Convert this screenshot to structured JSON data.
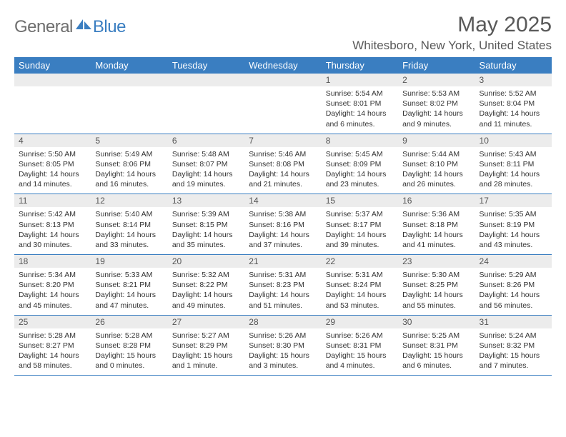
{
  "logo": {
    "text1": "General",
    "text2": "Blue"
  },
  "title": "May 2025",
  "location": "Whitesboro, New York, United States",
  "colors": {
    "header_bg": "#3a7ec1",
    "header_text": "#ffffff",
    "daynum_bg": "#ececec",
    "row_border": "#3a7ec1",
    "title_color": "#595959",
    "logo_gray": "#6e6e6e",
    "logo_blue": "#3a7ec1"
  },
  "dayNames": [
    "Sunday",
    "Monday",
    "Tuesday",
    "Wednesday",
    "Thursday",
    "Friday",
    "Saturday"
  ],
  "weeks": [
    [
      {
        "n": "",
        "sr": "",
        "ss": "",
        "dl": ""
      },
      {
        "n": "",
        "sr": "",
        "ss": "",
        "dl": ""
      },
      {
        "n": "",
        "sr": "",
        "ss": "",
        "dl": ""
      },
      {
        "n": "",
        "sr": "",
        "ss": "",
        "dl": ""
      },
      {
        "n": "1",
        "sr": "Sunrise: 5:54 AM",
        "ss": "Sunset: 8:01 PM",
        "dl": "Daylight: 14 hours and 6 minutes."
      },
      {
        "n": "2",
        "sr": "Sunrise: 5:53 AM",
        "ss": "Sunset: 8:02 PM",
        "dl": "Daylight: 14 hours and 9 minutes."
      },
      {
        "n": "3",
        "sr": "Sunrise: 5:52 AM",
        "ss": "Sunset: 8:04 PM",
        "dl": "Daylight: 14 hours and 11 minutes."
      }
    ],
    [
      {
        "n": "4",
        "sr": "Sunrise: 5:50 AM",
        "ss": "Sunset: 8:05 PM",
        "dl": "Daylight: 14 hours and 14 minutes."
      },
      {
        "n": "5",
        "sr": "Sunrise: 5:49 AM",
        "ss": "Sunset: 8:06 PM",
        "dl": "Daylight: 14 hours and 16 minutes."
      },
      {
        "n": "6",
        "sr": "Sunrise: 5:48 AM",
        "ss": "Sunset: 8:07 PM",
        "dl": "Daylight: 14 hours and 19 minutes."
      },
      {
        "n": "7",
        "sr": "Sunrise: 5:46 AM",
        "ss": "Sunset: 8:08 PM",
        "dl": "Daylight: 14 hours and 21 minutes."
      },
      {
        "n": "8",
        "sr": "Sunrise: 5:45 AM",
        "ss": "Sunset: 8:09 PM",
        "dl": "Daylight: 14 hours and 23 minutes."
      },
      {
        "n": "9",
        "sr": "Sunrise: 5:44 AM",
        "ss": "Sunset: 8:10 PM",
        "dl": "Daylight: 14 hours and 26 minutes."
      },
      {
        "n": "10",
        "sr": "Sunrise: 5:43 AM",
        "ss": "Sunset: 8:11 PM",
        "dl": "Daylight: 14 hours and 28 minutes."
      }
    ],
    [
      {
        "n": "11",
        "sr": "Sunrise: 5:42 AM",
        "ss": "Sunset: 8:13 PM",
        "dl": "Daylight: 14 hours and 30 minutes."
      },
      {
        "n": "12",
        "sr": "Sunrise: 5:40 AM",
        "ss": "Sunset: 8:14 PM",
        "dl": "Daylight: 14 hours and 33 minutes."
      },
      {
        "n": "13",
        "sr": "Sunrise: 5:39 AM",
        "ss": "Sunset: 8:15 PM",
        "dl": "Daylight: 14 hours and 35 minutes."
      },
      {
        "n": "14",
        "sr": "Sunrise: 5:38 AM",
        "ss": "Sunset: 8:16 PM",
        "dl": "Daylight: 14 hours and 37 minutes."
      },
      {
        "n": "15",
        "sr": "Sunrise: 5:37 AM",
        "ss": "Sunset: 8:17 PM",
        "dl": "Daylight: 14 hours and 39 minutes."
      },
      {
        "n": "16",
        "sr": "Sunrise: 5:36 AM",
        "ss": "Sunset: 8:18 PM",
        "dl": "Daylight: 14 hours and 41 minutes."
      },
      {
        "n": "17",
        "sr": "Sunrise: 5:35 AM",
        "ss": "Sunset: 8:19 PM",
        "dl": "Daylight: 14 hours and 43 minutes."
      }
    ],
    [
      {
        "n": "18",
        "sr": "Sunrise: 5:34 AM",
        "ss": "Sunset: 8:20 PM",
        "dl": "Daylight: 14 hours and 45 minutes."
      },
      {
        "n": "19",
        "sr": "Sunrise: 5:33 AM",
        "ss": "Sunset: 8:21 PM",
        "dl": "Daylight: 14 hours and 47 minutes."
      },
      {
        "n": "20",
        "sr": "Sunrise: 5:32 AM",
        "ss": "Sunset: 8:22 PM",
        "dl": "Daylight: 14 hours and 49 minutes."
      },
      {
        "n": "21",
        "sr": "Sunrise: 5:31 AM",
        "ss": "Sunset: 8:23 PM",
        "dl": "Daylight: 14 hours and 51 minutes."
      },
      {
        "n": "22",
        "sr": "Sunrise: 5:31 AM",
        "ss": "Sunset: 8:24 PM",
        "dl": "Daylight: 14 hours and 53 minutes."
      },
      {
        "n": "23",
        "sr": "Sunrise: 5:30 AM",
        "ss": "Sunset: 8:25 PM",
        "dl": "Daylight: 14 hours and 55 minutes."
      },
      {
        "n": "24",
        "sr": "Sunrise: 5:29 AM",
        "ss": "Sunset: 8:26 PM",
        "dl": "Daylight: 14 hours and 56 minutes."
      }
    ],
    [
      {
        "n": "25",
        "sr": "Sunrise: 5:28 AM",
        "ss": "Sunset: 8:27 PM",
        "dl": "Daylight: 14 hours and 58 minutes."
      },
      {
        "n": "26",
        "sr": "Sunrise: 5:28 AM",
        "ss": "Sunset: 8:28 PM",
        "dl": "Daylight: 15 hours and 0 minutes."
      },
      {
        "n": "27",
        "sr": "Sunrise: 5:27 AM",
        "ss": "Sunset: 8:29 PM",
        "dl": "Daylight: 15 hours and 1 minute."
      },
      {
        "n": "28",
        "sr": "Sunrise: 5:26 AM",
        "ss": "Sunset: 8:30 PM",
        "dl": "Daylight: 15 hours and 3 minutes."
      },
      {
        "n": "29",
        "sr": "Sunrise: 5:26 AM",
        "ss": "Sunset: 8:31 PM",
        "dl": "Daylight: 15 hours and 4 minutes."
      },
      {
        "n": "30",
        "sr": "Sunrise: 5:25 AM",
        "ss": "Sunset: 8:31 PM",
        "dl": "Daylight: 15 hours and 6 minutes."
      },
      {
        "n": "31",
        "sr": "Sunrise: 5:24 AM",
        "ss": "Sunset: 8:32 PM",
        "dl": "Daylight: 15 hours and 7 minutes."
      }
    ]
  ]
}
